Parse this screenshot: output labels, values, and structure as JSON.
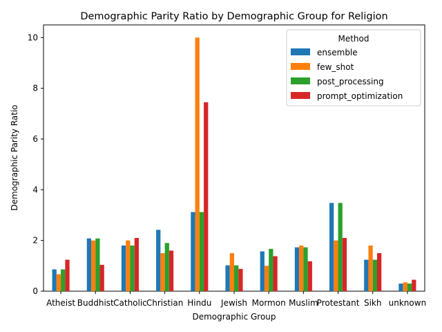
{
  "chart_data": {
    "type": "bar",
    "title": "Demographic Parity Ratio by Demographic Group for Religion",
    "xlabel": "Demographic Group",
    "ylabel": "Demographic Parity Ratio",
    "ylim": [
      0,
      10.5
    ],
    "yticks": [
      0,
      2,
      4,
      6,
      8,
      10
    ],
    "grid": false,
    "legend": {
      "title": "Method",
      "placement": "top-right"
    },
    "categories": [
      "Atheist",
      "Buddhist",
      "Catholic",
      "Christian",
      "Hindu",
      "Jewish",
      "Mormon",
      "Muslim",
      "Protestant",
      "Sikh",
      "unknown"
    ],
    "series": [
      {
        "name": "ensemble",
        "color": "#1f77b4",
        "values": [
          0.86,
          2.08,
          1.8,
          2.42,
          3.12,
          1.02,
          1.57,
          1.73,
          3.48,
          1.24,
          0.3
        ]
      },
      {
        "name": "few_shot",
        "color": "#ff7f0e",
        "values": [
          0.67,
          2.0,
          2.0,
          1.5,
          10.0,
          1.5,
          1.0,
          1.8,
          2.0,
          1.8,
          0.35
        ]
      },
      {
        "name": "post_processing",
        "color": "#2ca02c",
        "values": [
          0.86,
          2.08,
          1.8,
          1.9,
          3.12,
          1.02,
          1.67,
          1.73,
          3.48,
          1.24,
          0.3
        ]
      },
      {
        "name": "prompt_optimization",
        "color": "#d62728",
        "values": [
          1.24,
          1.04,
          2.1,
          1.6,
          7.45,
          0.88,
          1.38,
          1.18,
          2.1,
          1.5,
          0.45
        ]
      }
    ]
  }
}
